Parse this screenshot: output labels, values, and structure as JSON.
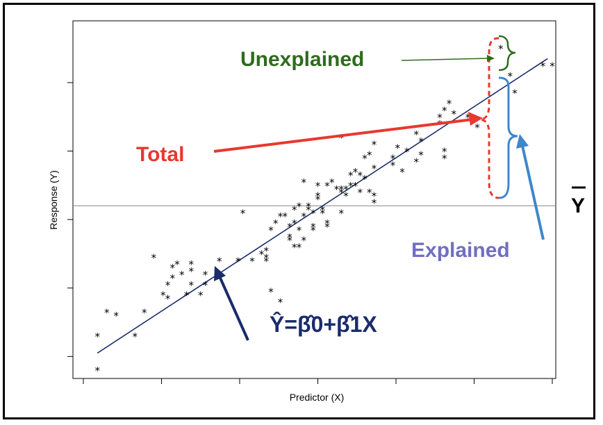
{
  "chart_data": {
    "type": "scatter",
    "xlabel": "Predictor (X)",
    "ylabel": "Response (Y)",
    "xlim": [
      0,
      100
    ],
    "ylim": [
      0,
      100
    ],
    "xticks": [
      0,
      16.67,
      33.33,
      50,
      66.67,
      83.33,
      100
    ],
    "yticks": [
      5,
      25,
      45,
      65,
      85
    ],
    "tick_labels_shown": false,
    "grid": false,
    "point_marker": "*",
    "points": [
      [
        3,
        1
      ],
      [
        3,
        11
      ],
      [
        5,
        18
      ],
      [
        7,
        17
      ],
      [
        11,
        11
      ],
      [
        13,
        18
      ],
      [
        15,
        34
      ],
      [
        17,
        23
      ],
      [
        18,
        22
      ],
      [
        18,
        26
      ],
      [
        19,
        28
      ],
      [
        19,
        31
      ],
      [
        20,
        32
      ],
      [
        21,
        29
      ],
      [
        22,
        23
      ],
      [
        23,
        26
      ],
      [
        23,
        30
      ],
      [
        23,
        32
      ],
      [
        25,
        23
      ],
      [
        26,
        26
      ],
      [
        26,
        29
      ],
      [
        29,
        33
      ],
      [
        33,
        33
      ],
      [
        34,
        47
      ],
      [
        36,
        33
      ],
      [
        38,
        35
      ],
      [
        39,
        33
      ],
      [
        39,
        34
      ],
      [
        39,
        36
      ],
      [
        40,
        24
      ],
      [
        40,
        42
      ],
      [
        41,
        44
      ],
      [
        42,
        21
      ],
      [
        42,
        46
      ],
      [
        43,
        46
      ],
      [
        44,
        39
      ],
      [
        44,
        40
      ],
      [
        44,
        43
      ],
      [
        45,
        37
      ],
      [
        45,
        44
      ],
      [
        45,
        48
      ],
      [
        46,
        49
      ],
      [
        46,
        37
      ],
      [
        46,
        42
      ],
      [
        47,
        39
      ],
      [
        47,
        46
      ],
      [
        47,
        56
      ],
      [
        48,
        48
      ],
      [
        48,
        49
      ],
      [
        49,
        47
      ],
      [
        49,
        42
      ],
      [
        49,
        43
      ],
      [
        50,
        55
      ],
      [
        50,
        52
      ],
      [
        50,
        51
      ],
      [
        51,
        48
      ],
      [
        51,
        47
      ],
      [
        52,
        43
      ],
      [
        52,
        44
      ],
      [
        52,
        55
      ],
      [
        53,
        56
      ],
      [
        54,
        54
      ],
      [
        55,
        47
      ],
      [
        55,
        53
      ],
      [
        55,
        54
      ],
      [
        55,
        69
      ],
      [
        56,
        52
      ],
      [
        56,
        54
      ],
      [
        57,
        55
      ],
      [
        57,
        58
      ],
      [
        58,
        55
      ],
      [
        58,
        59
      ],
      [
        59,
        58
      ],
      [
        59,
        53
      ],
      [
        60,
        57
      ],
      [
        60,
        63
      ],
      [
        61,
        53
      ],
      [
        61,
        64
      ],
      [
        62,
        50
      ],
      [
        62,
        52
      ],
      [
        62,
        60
      ],
      [
        62,
        67
      ],
      [
        66,
        61
      ],
      [
        66,
        63
      ],
      [
        67,
        66
      ],
      [
        68,
        59
      ],
      [
        69,
        65
      ],
      [
        71,
        62
      ],
      [
        71,
        70
      ],
      [
        72,
        68
      ],
      [
        72,
        64
      ],
      [
        76,
        75
      ],
      [
        76,
        73
      ],
      [
        77,
        77
      ],
      [
        77,
        63
      ],
      [
        77,
        65
      ],
      [
        78,
        79
      ],
      [
        79,
        76
      ],
      [
        82,
        75
      ],
      [
        84,
        72
      ],
      [
        89,
        95
      ],
      [
        91,
        87
      ],
      [
        92,
        82
      ],
      [
        98,
        90
      ],
      [
        100,
        90
      ]
    ],
    "mean_y": 49,
    "regression_line": {
      "x": [
        3,
        99
      ],
      "y": [
        6,
        92
      ]
    },
    "annotations": {
      "total": "Total",
      "unexplained": "Unexplained",
      "explained": "Explained",
      "y_bar": "Y",
      "equation": "Ŷ=β̂0+β̂1X"
    },
    "colors": {
      "regression": "#1a2c6b",
      "mean_line": "#888888",
      "total": "#e8382f",
      "unexplained": "#2e6b1e",
      "explained_brace": "#3f86cc",
      "explained_text": "#6f6fc2",
      "equation": "#1a2c6b"
    }
  }
}
